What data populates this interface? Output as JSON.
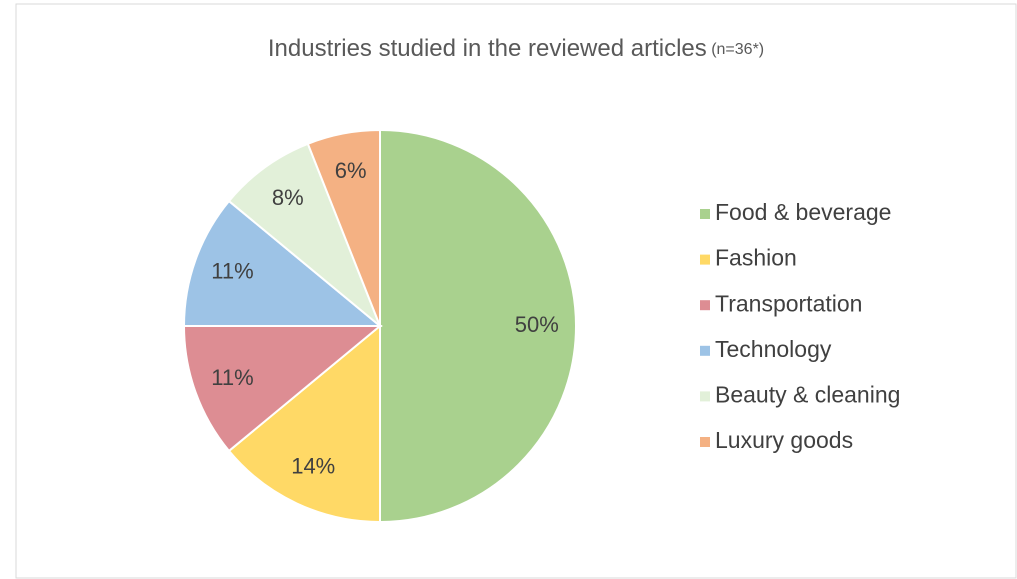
{
  "chart_data": {
    "type": "pie",
    "title": "Industries studied in the reviewed articles",
    "subtitle": "(n=36*)",
    "categories": [
      "Food & beverage",
      "Fashion",
      "Transportation",
      "Technology",
      "Beauty & cleaning",
      "Luxury goods"
    ],
    "values": [
      50,
      14,
      11,
      11,
      8,
      6
    ],
    "value_labels": [
      "50%",
      "14%",
      "11%",
      "11%",
      "8%",
      "6%"
    ],
    "colors": [
      "#a9d18e",
      "#ffd966",
      "#dd8d93",
      "#9dc3e6",
      "#e2f0d9",
      "#f4b183"
    ],
    "legend": "right"
  }
}
